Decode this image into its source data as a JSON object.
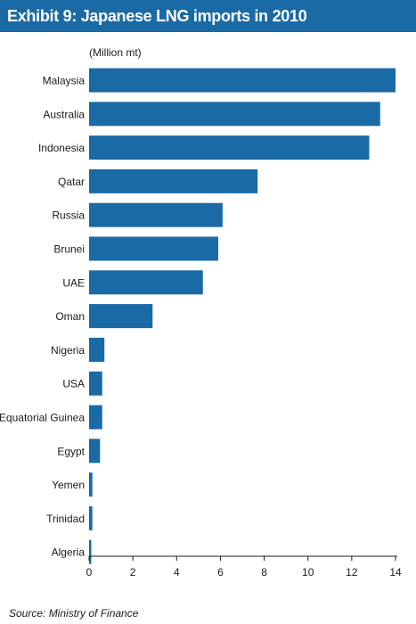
{
  "header": {
    "title": "Exhibit 9: Japanese LNG imports in 2010"
  },
  "source": "Source: Ministry of Finance",
  "chart_data": {
    "type": "bar",
    "orientation": "horizontal",
    "title": "Exhibit 9: Japanese LNG imports in 2010",
    "unit_label": "(Million mt)",
    "categories": [
      "Malaysia",
      "Australia",
      "Indonesia",
      "Qatar",
      "Russia",
      "Brunei",
      "UAE",
      "Oman",
      "Nigeria",
      "USA",
      "Equatorial Guinea",
      "Egypt",
      "Yemen",
      "Trinidad",
      "Algeria"
    ],
    "values": [
      14.0,
      13.3,
      12.8,
      7.7,
      6.1,
      5.9,
      5.2,
      2.9,
      0.7,
      0.6,
      0.6,
      0.5,
      0.15,
      0.15,
      0.1
    ],
    "xlim": [
      0,
      14
    ],
    "xticks": [
      0,
      2,
      4,
      6,
      8,
      10,
      12,
      14
    ],
    "grid": false,
    "bar_color": "#1a6aa6"
  }
}
